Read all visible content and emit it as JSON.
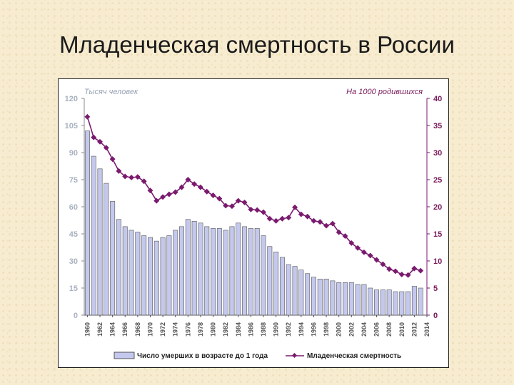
{
  "slide": {
    "title": "Младенческая смертность в России"
  },
  "chart_data": {
    "type": "bar",
    "left_axis": {
      "unit_label": "Тысяч человек",
      "ylim": [
        0,
        120
      ],
      "ticks": [
        0,
        15,
        30,
        45,
        60,
        75,
        90,
        105,
        120
      ],
      "color": "#a9b2c0"
    },
    "right_axis": {
      "unit_label": "На 1000 родившихся",
      "ylim": [
        0,
        40
      ],
      "ticks": [
        0,
        5,
        10,
        15,
        20,
        25,
        30,
        35,
        40
      ],
      "color": "#7a1a5a"
    },
    "x": [
      1960,
      1961,
      1962,
      1963,
      1964,
      1965,
      1966,
      1967,
      1968,
      1969,
      1970,
      1971,
      1972,
      1973,
      1974,
      1975,
      1976,
      1977,
      1978,
      1979,
      1980,
      1981,
      1982,
      1983,
      1984,
      1985,
      1986,
      1987,
      1988,
      1989,
      1990,
      1991,
      1992,
      1993,
      1994,
      1995,
      1996,
      1997,
      1998,
      1999,
      2000,
      2001,
      2002,
      2003,
      2004,
      2005,
      2006,
      2007,
      2008,
      2009,
      2010,
      2011,
      2012,
      2013
    ],
    "x_tick_labels": [
      "1960",
      "1962",
      "1964",
      "1966",
      "1968",
      "1970",
      "1972",
      "1974",
      "1976",
      "1978",
      "1980",
      "1982",
      "1984",
      "1986",
      "1988",
      "1990",
      "1992",
      "1994",
      "1996",
      "1998",
      "2000",
      "2002",
      "2004",
      "2006",
      "2008",
      "2010",
      "2012",
      "2014"
    ],
    "series": [
      {
        "name": "Число умерших в возрасте до 1 года",
        "kind": "bar",
        "axis": "left",
        "color": "#c4c8ec",
        "values": [
          102,
          88,
          81,
          73,
          63,
          53,
          49,
          47,
          46,
          44,
          43,
          41,
          43,
          44,
          47,
          49,
          53,
          52,
          51,
          49,
          48,
          48,
          47,
          49,
          51,
          49,
          48,
          48,
          44,
          38,
          35,
          32,
          28,
          27,
          25,
          23,
          21,
          20,
          20,
          19,
          18,
          18,
          18,
          17,
          17,
          15,
          14,
          14,
          14,
          13,
          13,
          13,
          16,
          15
        ]
      },
      {
        "name": "Младенческая смертность",
        "kind": "line",
        "axis": "right",
        "color": "#7a1a6e",
        "values": [
          36.6,
          32.8,
          32.0,
          30.9,
          28.8,
          26.6,
          25.6,
          25.4,
          25.5,
          24.7,
          23.0,
          21.1,
          21.8,
          22.3,
          22.7,
          23.6,
          25.0,
          24.2,
          23.6,
          22.8,
          22.1,
          21.5,
          20.2,
          20.1,
          21.1,
          20.8,
          19.5,
          19.4,
          19.0,
          17.8,
          17.4,
          17.8,
          18.0,
          19.9,
          18.6,
          18.2,
          17.4,
          17.2,
          16.5,
          16.9,
          15.3,
          14.6,
          13.3,
          12.4,
          11.6,
          11.0,
          10.2,
          9.4,
          8.5,
          8.1,
          7.5,
          7.4,
          8.6,
          8.2
        ]
      }
    ],
    "legend": {
      "position": "bottom",
      "bar_label": "Число умерших в возрасте до 1 года",
      "line_label": "Младенческая смертность"
    },
    "grid": false
  }
}
